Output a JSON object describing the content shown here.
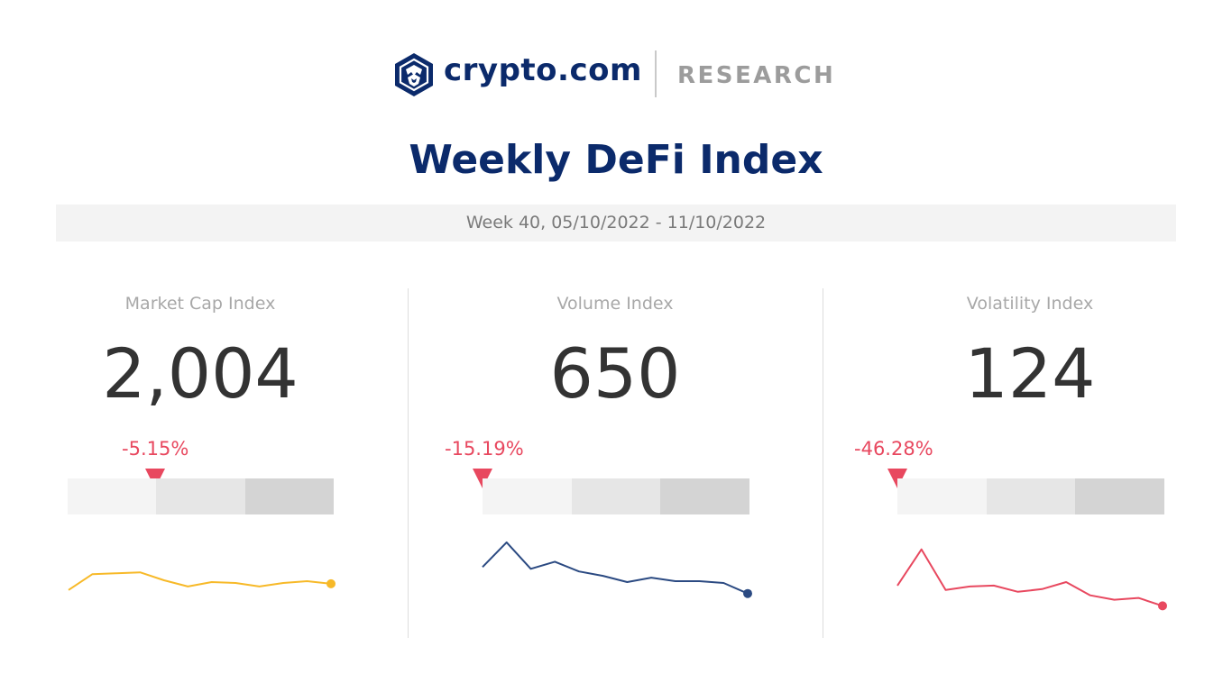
{
  "header": {
    "brand": "crypto.com",
    "section": "RESEARCH",
    "logo_icon": "crypto-com-lion-shield-icon"
  },
  "title": "Weekly DeFi Index",
  "week": "Week 40, 05/10/2022 - 11/10/2022",
  "colors": {
    "navy": "#0b2a6b",
    "negative": "#e8485f",
    "market_cap_line": "#f7b928",
    "volume_line": "#2b4a82",
    "volatility_line": "#e8485f"
  },
  "chart_data": [
    {
      "type": "line",
      "label": "Market Cap Index",
      "value": "2,004",
      "change": "-5.15%",
      "change_fraction": 0.33,
      "values": [
        40,
        58,
        59,
        60,
        51,
        44,
        49,
        48,
        44,
        48,
        50,
        47
      ],
      "ylim": [
        0,
        100
      ],
      "line_color": "#f7b928",
      "grid": false
    },
    {
      "type": "line",
      "label": "Volume Index",
      "value": "650",
      "change": "-15.19%",
      "change_fraction": 0.0,
      "values": [
        66,
        94,
        64,
        72,
        61,
        56,
        49,
        54,
        50,
        50,
        48,
        36
      ],
      "ylim": [
        0,
        100
      ],
      "line_color": "#2b4a82",
      "grid": false
    },
    {
      "type": "line",
      "label": "Volatility Index",
      "value": "124",
      "change": "-46.28%",
      "change_fraction": 0.0,
      "values": [
        45,
        86,
        40,
        44,
        45,
        38,
        41,
        49,
        34,
        29,
        31,
        22
      ],
      "ylim": [
        0,
        100
      ],
      "line_color": "#e8485f",
      "grid": false
    }
  ]
}
